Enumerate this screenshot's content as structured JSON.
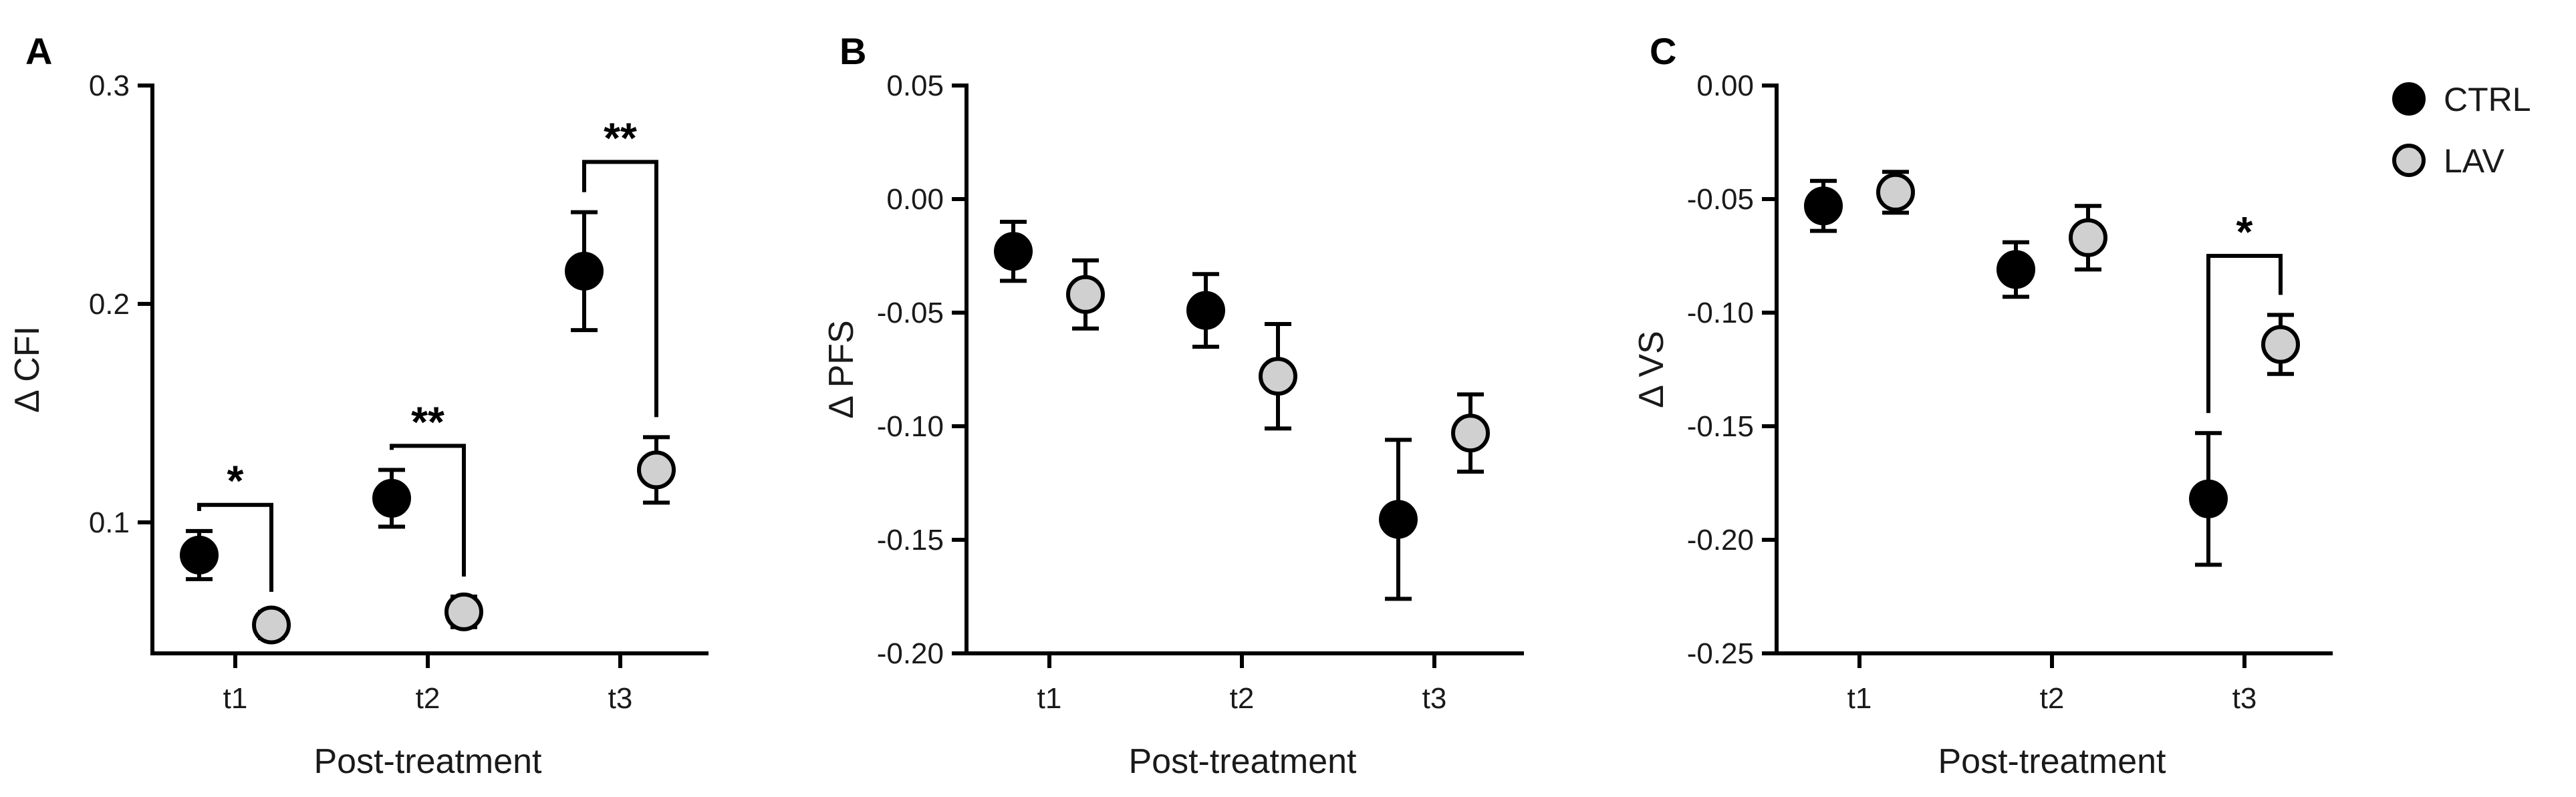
{
  "figure": {
    "background": "#ffffff"
  },
  "legend": [
    {
      "name": "CTRL",
      "color": "#000000"
    },
    {
      "name": "LAV",
      "color": "#d0d0d0"
    }
  ],
  "chart_data": [
    {
      "type": "scatter",
      "panel_letter": "A",
      "title": "",
      "ylabel": "Δ CFI",
      "xlabel": "Post-treatment",
      "categories": [
        "t1",
        "t2",
        "t3"
      ],
      "ylim": [
        0.04,
        0.3
      ],
      "yticks": [
        0.1,
        0.2,
        0.3
      ],
      "ytick_labels": [
        "0.1",
        "0.2",
        "0.3"
      ],
      "series": [
        {
          "name": "CTRL",
          "values": [
            0.085,
            0.111,
            0.215
          ],
          "err": [
            0.011,
            0.013,
            0.027
          ]
        },
        {
          "name": "LAV",
          "values": [
            0.053,
            0.059,
            0.124
          ],
          "err": [
            0.006,
            0.007,
            0.015
          ]
        }
      ],
      "significance": [
        {
          "category": "t1",
          "label": "*",
          "y": 0.108
        },
        {
          "category": "t2",
          "label": "**",
          "y": 0.135
        },
        {
          "category": "t3",
          "label": "**",
          "y": 0.265
        }
      ]
    },
    {
      "type": "scatter",
      "panel_letter": "B",
      "title": "",
      "ylabel": "Δ PFS",
      "xlabel": "Post-treatment",
      "categories": [
        "t1",
        "t2",
        "t3"
      ],
      "ylim": [
        -0.2,
        0.05
      ],
      "yticks": [
        0.05,
        0.0,
        -0.05,
        -0.1,
        -0.15,
        -0.2
      ],
      "ytick_labels": [
        "0.05",
        "0.00",
        "-0.05",
        "-0.10",
        "-0.15",
        "-0.20"
      ],
      "series": [
        {
          "name": "CTRL",
          "values": [
            -0.023,
            -0.049,
            -0.141
          ],
          "err": [
            0.013,
            0.016,
            0.035
          ]
        },
        {
          "name": "LAV",
          "values": [
            -0.042,
            -0.078,
            -0.103
          ],
          "err": [
            0.015,
            0.023,
            0.017
          ]
        }
      ],
      "significance": []
    },
    {
      "type": "scatter",
      "panel_letter": "C",
      "title": "",
      "ylabel": "Δ VS",
      "xlabel": "Post-treatment",
      "categories": [
        "t1",
        "t2",
        "t3"
      ],
      "ylim": [
        -0.25,
        0.0
      ],
      "yticks": [
        0.0,
        -0.05,
        -0.1,
        -0.15,
        -0.2,
        -0.25
      ],
      "ytick_labels": [
        "0.00",
        "-0.05",
        "-0.10",
        "-0.15",
        "-0.20",
        "-0.25"
      ],
      "series": [
        {
          "name": "CTRL",
          "values": [
            -0.053,
            -0.081,
            -0.182
          ],
          "err": [
            0.011,
            0.012,
            0.029
          ]
        },
        {
          "name": "LAV",
          "values": [
            -0.047,
            -0.067,
            -0.114
          ],
          "err": [
            0.009,
            0.014,
            0.013
          ]
        }
      ],
      "significance": [
        {
          "category": "t3",
          "label": "*",
          "y": -0.075
        }
      ]
    }
  ]
}
